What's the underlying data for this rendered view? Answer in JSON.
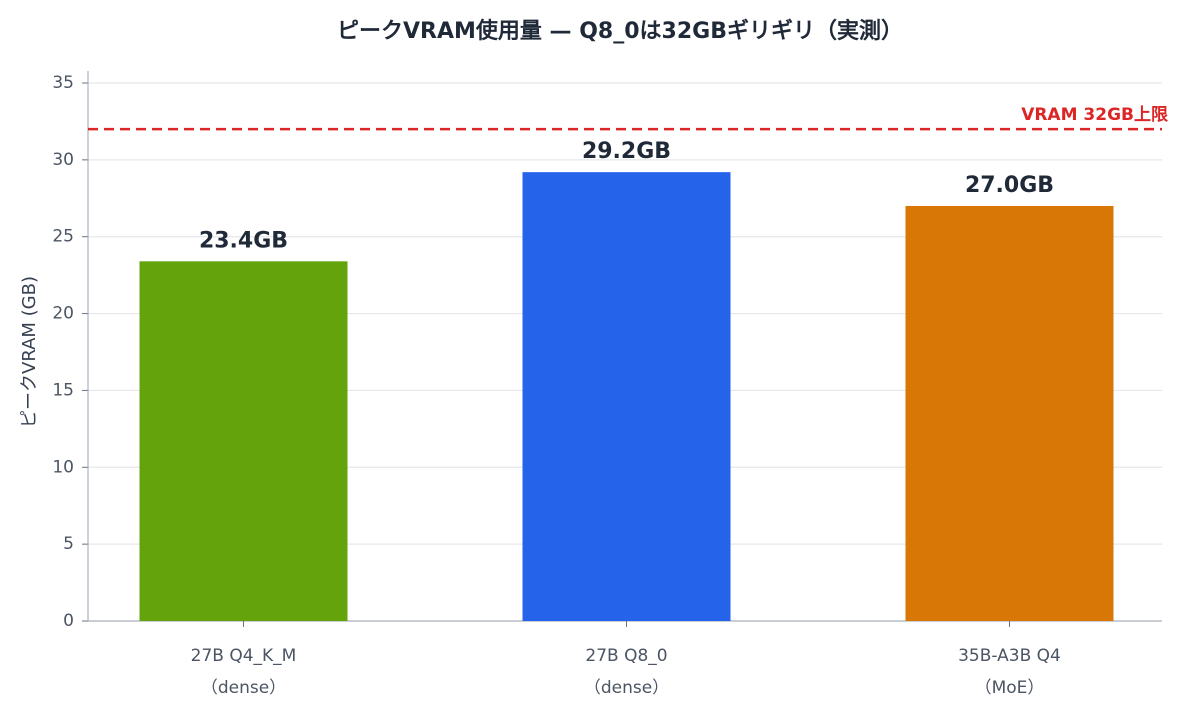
{
  "chart_data": {
    "type": "bar",
    "title": "ピークVRAM使用量 — Q8_0は32GBギリギリ（実測）",
    "y_label": "ピークVRAM (GB)",
    "categories": [
      [
        "27B Q4_K_M",
        "（dense）"
      ],
      [
        "27B Q8_0",
        "（dense）"
      ],
      [
        "35B-A3B Q4",
        "（MoE）"
      ]
    ],
    "values": [
      23.4,
      29.2,
      27.0
    ],
    "value_labels": [
      "23.4GB",
      "29.2GB",
      "27.0GB"
    ],
    "colors": [
      "#65a30d",
      "#2563eb",
      "#d97706"
    ],
    "ylim": [
      0,
      35
    ],
    "yticks": [
      0,
      5,
      10,
      15,
      20,
      25,
      30,
      35
    ],
    "grid": true,
    "reference_line": {
      "value": 32,
      "label": "VRAM 32GB上限",
      "color": "#dc2626"
    }
  }
}
